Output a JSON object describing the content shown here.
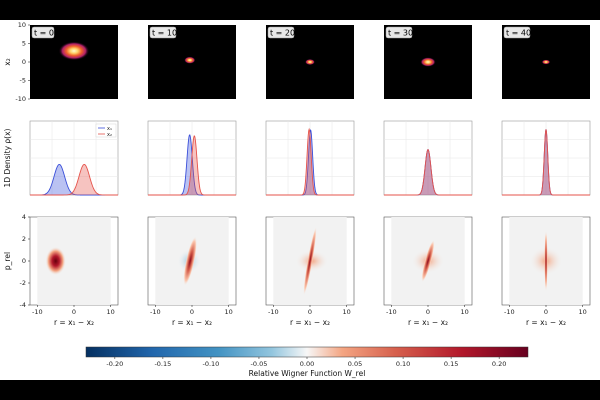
{
  "chart_data": {
    "type": "multi-panel",
    "times": [
      "t = 0",
      "t = 10",
      "t = 20",
      "t = 30",
      "t = 40"
    ],
    "row1": {
      "type": "heatmap",
      "ylabel": "x₂",
      "xlim": [
        -10,
        10
      ],
      "ylim": [
        -10,
        10
      ],
      "yticks": [
        -10,
        -5,
        0,
        5,
        10
      ],
      "blobs": [
        {
          "x": 0,
          "y": 3,
          "rx": 2.2,
          "ry": 1.6
        },
        {
          "x": -0.5,
          "y": 0.5,
          "rx": 0.8,
          "ry": 0.6
        },
        {
          "x": 0,
          "y": 0,
          "rx": 0.7,
          "ry": 0.5
        },
        {
          "x": 0,
          "y": 0,
          "rx": 1.1,
          "ry": 0.8
        },
        {
          "x": 0,
          "y": 0,
          "rx": 0.6,
          "ry": 0.4
        }
      ]
    },
    "row2": {
      "type": "area",
      "ylabel": "1D Density ρ(x)",
      "xlim": [
        -15,
        15
      ],
      "ylim": [
        0,
        0.15
      ],
      "legend": [
        "x₁",
        "x₂"
      ],
      "series_colors": [
        "#3a4fd9",
        "#e5534b"
      ],
      "panels": [
        {
          "x1": {
            "mu": -5,
            "sigma": 1.8,
            "amp": 0.062
          },
          "x2": {
            "mu": 3.5,
            "sigma": 1.8,
            "amp": 0.062
          }
        },
        {
          "x1": {
            "mu": -0.8,
            "sigma": 0.9,
            "amp": 0.122
          },
          "x2": {
            "mu": 0.8,
            "sigma": 0.9,
            "amp": 0.12
          }
        },
        {
          "x1": {
            "mu": 0.2,
            "sigma": 0.7,
            "amp": 0.132
          },
          "x2": {
            "mu": -0.3,
            "sigma": 0.7,
            "amp": 0.133
          }
        },
        {
          "x1": {
            "mu": 0,
            "sigma": 1.0,
            "amp": 0.092
          },
          "x2": {
            "mu": 0,
            "sigma": 1.0,
            "amp": 0.092
          }
        },
        {
          "x1": {
            "mu": 0,
            "sigma": 0.6,
            "amp": 0.133
          },
          "x2": {
            "mu": 0,
            "sigma": 0.6,
            "amp": 0.133
          }
        }
      ]
    },
    "row3": {
      "type": "heatmap",
      "ylabel": "p_rel",
      "xlabel": "r = x₁ − x₂",
      "xlim": [
        -12,
        12
      ],
      "ylim": [
        -4,
        4
      ],
      "xticks": [
        -10,
        0,
        10
      ],
      "yticks": [
        -4,
        -2,
        0,
        2,
        4
      ]
    },
    "colorbar": {
      "label": "Relative Wigner Function W_rel",
      "min": -0.23,
      "max": 0.23,
      "ticks": [
        "-0.20",
        "-0.15",
        "-0.10",
        "-0.05",
        "0.00",
        "0.05",
        "0.10",
        "0.15",
        "0.20"
      ],
      "tick_values": [
        -0.2,
        -0.15,
        -0.1,
        -0.05,
        0,
        0.05,
        0.1,
        0.15,
        0.2
      ]
    }
  }
}
